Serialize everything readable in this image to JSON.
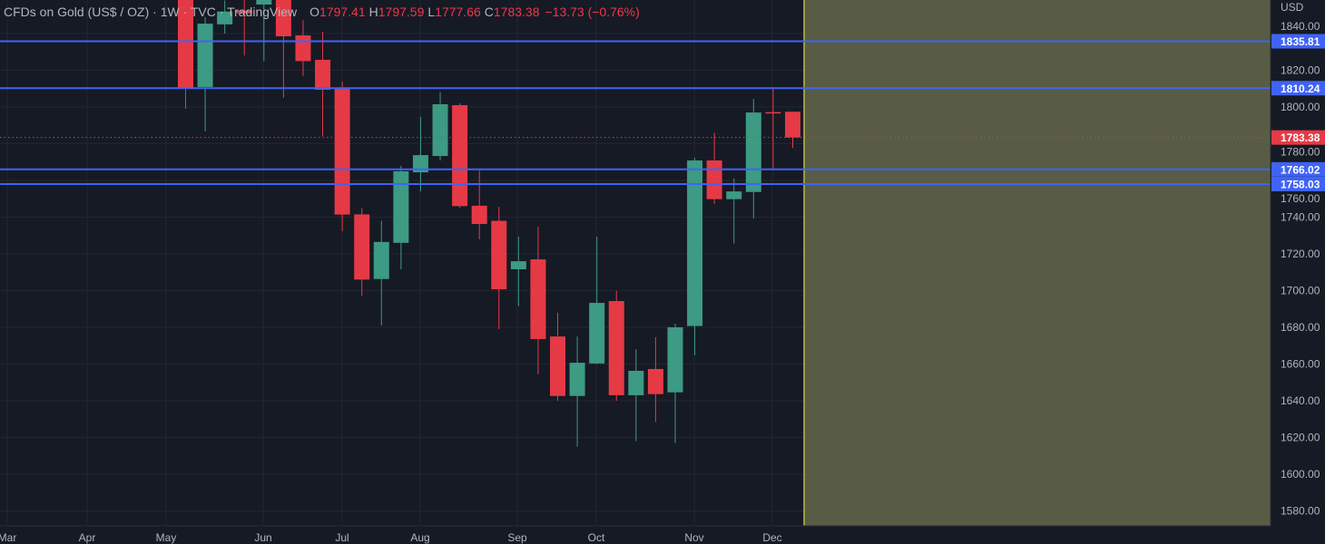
{
  "header": {
    "title": "CFDs on Gold (US$ / OZ) · 1W · TVC · TradingView",
    "o_label": "O",
    "o_value": "1797.41",
    "h_label": "H",
    "h_value": "1797.59",
    "l_label": "L",
    "l_value": "1777.66",
    "c_label": "C",
    "c_value": "1783.38",
    "change": "−13.73 (−0.76%)"
  },
  "colors": {
    "background": "#161a25",
    "grid": "#232632",
    "up": "#3d9a83",
    "down": "#e53a45",
    "hline": "#3f63f5",
    "last_price": "#e53a45",
    "shaded_region": "#595c45",
    "shaded_border": "#d8d84a"
  },
  "chart_data": {
    "type": "candlestick",
    "title": "CFDs on Gold (US$ / OZ) · 1W · TVC · TradingView",
    "currency": "USD",
    "ylim": [
      1570,
      1858
    ],
    "grid": true,
    "yticks": [
      "1840.00",
      "1820.00",
      "1800.00",
      "1780.00",
      "1760.00",
      "1740.00",
      "1720.00",
      "1700.00",
      "1680.00",
      "1660.00",
      "1640.00",
      "1620.00",
      "1600.00",
      "1580.00"
    ],
    "xticks": [
      "Mar",
      "Apr",
      "May",
      "Jun",
      "Jul",
      "Aug",
      "Sep",
      "Oct",
      "Nov",
      "Dec"
    ],
    "candles": [
      {
        "o": 1862,
        "h": 1870,
        "l": 1799,
        "c": 1810
      },
      {
        "o": 1810.9,
        "h": 1849,
        "l": 1786.7,
        "c": 1845.4
      },
      {
        "o": 1845,
        "h": 1858,
        "l": 1840,
        "c": 1852
      },
      {
        "o": 1852.5,
        "h": 1870,
        "l": 1828,
        "c": 1851
      },
      {
        "o": 1855.8,
        "h": 1875,
        "l": 1825,
        "c": 1870
      },
      {
        "o": 1865,
        "h": 1870,
        "l": 1805,
        "c": 1838.5
      },
      {
        "o": 1839,
        "h": 1847.4,
        "l": 1816.8,
        "c": 1825
      },
      {
        "o": 1825.7,
        "h": 1841,
        "l": 1784,
        "c": 1809.4
      },
      {
        "o": 1810,
        "h": 1813.8,
        "l": 1732.4,
        "c": 1741.4
      },
      {
        "o": 1741.5,
        "h": 1745,
        "l": 1697,
        "c": 1706
      },
      {
        "o": 1706.3,
        "h": 1738,
        "l": 1681,
        "c": 1726.5
      },
      {
        "o": 1726,
        "h": 1768,
        "l": 1711.6,
        "c": 1765
      },
      {
        "o": 1764.4,
        "h": 1794.6,
        "l": 1754,
        "c": 1773.8
      },
      {
        "o": 1773.3,
        "h": 1808,
        "l": 1770.9,
        "c": 1801.5
      },
      {
        "o": 1801,
        "h": 1802,
        "l": 1745,
        "c": 1746
      },
      {
        "o": 1746.2,
        "h": 1765.4,
        "l": 1727.9,
        "c": 1736.3
      },
      {
        "o": 1738,
        "h": 1745.6,
        "l": 1679,
        "c": 1700.7
      },
      {
        "o": 1711.6,
        "h": 1729.4,
        "l": 1691.5,
        "c": 1716
      },
      {
        "o": 1717,
        "h": 1734.8,
        "l": 1654.5,
        "c": 1673.6
      },
      {
        "o": 1675,
        "h": 1688,
        "l": 1640,
        "c": 1642.6
      },
      {
        "o": 1642.6,
        "h": 1675,
        "l": 1615,
        "c": 1660.7
      },
      {
        "o": 1660.3,
        "h": 1729.4,
        "l": 1660,
        "c": 1693.3
      },
      {
        "o": 1694.3,
        "h": 1699.8,
        "l": 1640,
        "c": 1643
      },
      {
        "o": 1643,
        "h": 1668,
        "l": 1618,
        "c": 1656.3
      },
      {
        "o": 1657.3,
        "h": 1674.6,
        "l": 1628.5,
        "c": 1643.6
      },
      {
        "o": 1644.6,
        "h": 1682,
        "l": 1617,
        "c": 1680
      },
      {
        "o": 1680.7,
        "h": 1772.3,
        "l": 1664.8,
        "c": 1770.9
      },
      {
        "o": 1770.9,
        "h": 1786,
        "l": 1747.3,
        "c": 1749.8
      },
      {
        "o": 1749.8,
        "h": 1761,
        "l": 1725.6,
        "c": 1754
      },
      {
        "o": 1753.7,
        "h": 1804.4,
        "l": 1739.4,
        "c": 1797
      },
      {
        "o": 1797.2,
        "h": 1810,
        "l": 1766,
        "c": 1796.6
      },
      {
        "o": 1797.41,
        "h": 1797.59,
        "l": 1777.66,
        "c": 1783.38
      }
    ],
    "horizontal_lines": [
      {
        "value": 1835.81,
        "label": "1835.81"
      },
      {
        "value": 1810.24,
        "label": "1810.24"
      },
      {
        "value": 1766.02,
        "label": "1766.02"
      },
      {
        "value": 1758.03,
        "label": "1758.03"
      }
    ],
    "last_price": {
      "value": 1783.38,
      "label": "1783.38"
    }
  }
}
